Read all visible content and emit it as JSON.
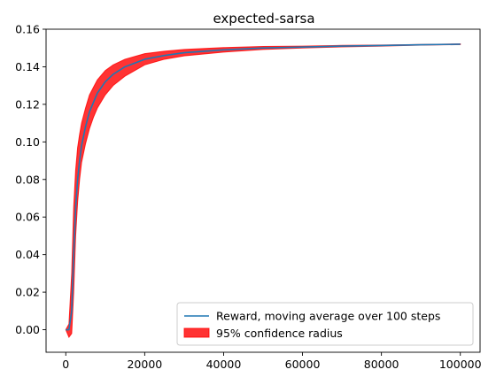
{
  "chart_data": {
    "type": "line",
    "title": "expected-sarsa",
    "xlabel": "",
    "ylabel": "",
    "xlim": [
      -5000,
      105000
    ],
    "ylim": [
      -0.012,
      0.16
    ],
    "x_ticks": [
      0,
      20000,
      40000,
      60000,
      80000,
      100000
    ],
    "x_tick_labels": [
      "0",
      "20000",
      "40000",
      "60000",
      "80000",
      "100000"
    ],
    "y_ticks": [
      0.0,
      0.02,
      0.04,
      0.06,
      0.08,
      0.1,
      0.12,
      0.14,
      0.16
    ],
    "y_tick_labels": [
      "0.00",
      "0.02",
      "0.04",
      "0.06",
      "0.08",
      "0.10",
      "0.12",
      "0.14",
      "0.16"
    ],
    "grid": false,
    "legend_position": "lower-right",
    "series": [
      {
        "name": "Reward, moving average over 100 steps",
        "kind": "line",
        "color": "#1f77b4",
        "x": [
          0,
          800,
          1500,
          2000,
          2500,
          3000,
          3500,
          4000,
          5000,
          6000,
          7000,
          8000,
          10000,
          12000,
          15000,
          20000,
          25000,
          30000,
          40000,
          50000,
          60000,
          70000,
          80000,
          90000,
          100000
        ],
        "y": [
          0.0,
          0.0,
          0.01,
          0.04,
          0.065,
          0.08,
          0.09,
          0.098,
          0.108,
          0.116,
          0.121,
          0.126,
          0.132,
          0.136,
          0.14,
          0.144,
          0.146,
          0.1475,
          0.149,
          0.15,
          0.1505,
          0.151,
          0.1513,
          0.1517,
          0.152
        ]
      },
      {
        "name": "95% confidence radius",
        "kind": "band",
        "color": "#ff0000",
        "x": [
          0,
          800,
          1500,
          2000,
          2500,
          3000,
          3500,
          4000,
          5000,
          6000,
          7000,
          8000,
          10000,
          12000,
          15000,
          20000,
          25000,
          30000,
          40000,
          50000,
          60000,
          70000,
          80000,
          90000,
          100000
        ],
        "lower": [
          0.0,
          -0.004,
          -0.002,
          0.02,
          0.05,
          0.068,
          0.08,
          0.089,
          0.099,
          0.107,
          0.113,
          0.118,
          0.125,
          0.13,
          0.135,
          0.141,
          0.144,
          0.1458,
          0.1478,
          0.1492,
          0.15,
          0.1506,
          0.151,
          0.1515,
          0.1518
        ],
        "upper": [
          0.0,
          0.003,
          0.03,
          0.065,
          0.085,
          0.097,
          0.104,
          0.11,
          0.118,
          0.125,
          0.129,
          0.133,
          0.138,
          0.141,
          0.144,
          0.147,
          0.1483,
          0.1492,
          0.1502,
          0.1508,
          0.151,
          0.1514,
          0.1516,
          0.1519,
          0.1522
        ]
      }
    ]
  }
}
